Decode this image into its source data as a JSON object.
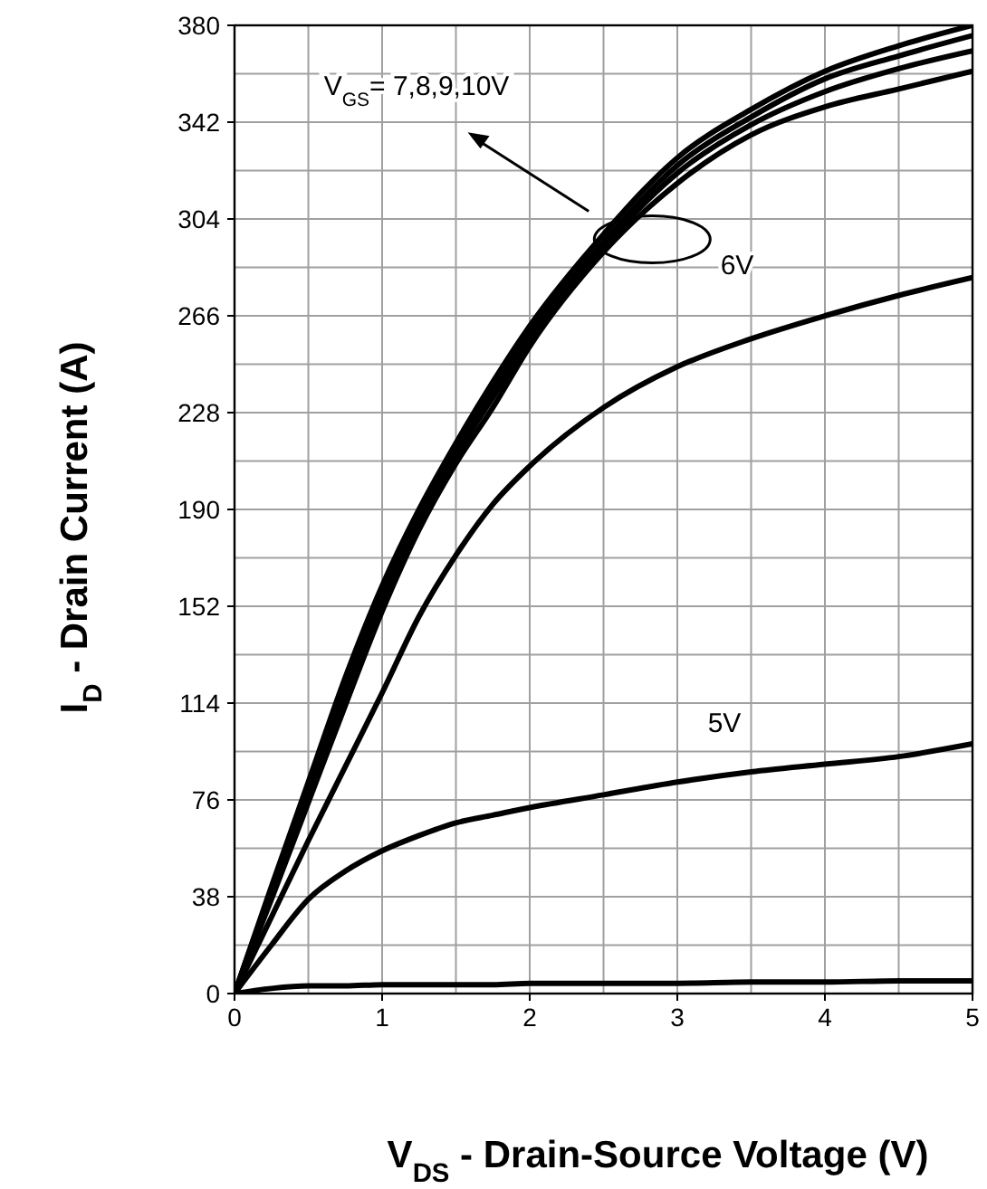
{
  "chart_data": {
    "type": "line",
    "xlabel": "V$_{DS}$ - Drain-Source Voltage (V)",
    "ylabel": "I$_{D}$ - Drain Current (A)",
    "x": [
      0,
      0.25,
      0.5,
      0.75,
      1,
      1.25,
      1.5,
      1.75,
      2,
      2.5,
      3,
      3.5,
      4,
      4.5,
      5
    ],
    "series": [
      {
        "color": "#000000",
        "values": [
          0,
          42,
          83,
          124,
          160,
          190,
          216,
          240,
          262,
          298,
          328,
          347,
          362,
          372,
          380
        ]
      },
      {
        "color": "#000000",
        "values": [
          0,
          41,
          81,
          121,
          157,
          187,
          213,
          237,
          259,
          295,
          325,
          344,
          359,
          368,
          376
        ]
      },
      {
        "color": "#000000",
        "values": [
          0,
          40,
          79,
          118,
          154,
          185,
          211,
          234,
          256,
          293,
          322,
          341,
          354,
          363,
          370
        ]
      },
      {
        "color": "#000000",
        "values": [
          0,
          37,
          75,
          113,
          150,
          182,
          208,
          230,
          254,
          291,
          318,
          337,
          348,
          355,
          362
        ]
      },
      {
        "color": "#000000",
        "values": [
          0,
          30,
          60,
          89,
          118,
          148,
          172,
          192,
          207,
          230,
          246,
          257,
          266,
          274,
          281
        ]
      },
      {
        "color": "#000000",
        "values": [
          0,
          19,
          37,
          48,
          56,
          62,
          67,
          70,
          73,
          78,
          83,
          87,
          90,
          93,
          98
        ]
      },
      {
        "color": "#000000",
        "values": [
          0,
          2,
          3,
          3,
          3.5,
          3.5,
          3.5,
          3.5,
          4,
          4,
          4,
          4.5,
          4.5,
          5,
          5
        ]
      }
    ],
    "xlim": [
      0,
      5
    ],
    "xticks": [
      0,
      1,
      2,
      3,
      4,
      5
    ],
    "ylim": [
      0,
      380
    ],
    "yticks": [
      0,
      38,
      76,
      114,
      152,
      190,
      228,
      266,
      304,
      342,
      380
    ],
    "grid": true,
    "marker": "none",
    "line_style": "solid",
    "annotations": [
      "V$_{GS}$= 7,8,9,10V",
      "6V",
      "5V"
    ]
  }
}
